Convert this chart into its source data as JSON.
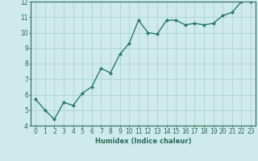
{
  "x": [
    0,
    1,
    2,
    3,
    4,
    5,
    6,
    7,
    8,
    9,
    10,
    11,
    12,
    13,
    14,
    15,
    16,
    17,
    18,
    19,
    20,
    21,
    22,
    23
  ],
  "y": [
    5.7,
    5.0,
    4.4,
    5.5,
    5.3,
    6.1,
    6.5,
    7.7,
    7.4,
    8.6,
    9.3,
    10.8,
    10.0,
    9.9,
    10.8,
    10.8,
    10.5,
    10.6,
    10.5,
    10.6,
    11.1,
    11.3,
    12.0,
    12.0
  ],
  "line_color": "#2a7a6a",
  "marker": "D",
  "marker_size": 2.0,
  "line_width": 1.0,
  "bg_color": "#ceeaea",
  "grid_color": "#a8cece",
  "xlabel": "Humidex (Indice chaleur)",
  "xlim": [
    -0.5,
    23.5
  ],
  "ylim": [
    4,
    12
  ],
  "yticks": [
    4,
    5,
    6,
    7,
    8,
    9,
    10,
    11,
    12
  ],
  "xticks": [
    0,
    1,
    2,
    3,
    4,
    5,
    6,
    7,
    8,
    9,
    10,
    11,
    12,
    13,
    14,
    15,
    16,
    17,
    18,
    19,
    20,
    21,
    22,
    23
  ],
  "xlabel_fontsize": 6.0,
  "tick_fontsize": 5.5,
  "axis_color": "#2a6a5a",
  "spine_color": "#2a6a5a"
}
